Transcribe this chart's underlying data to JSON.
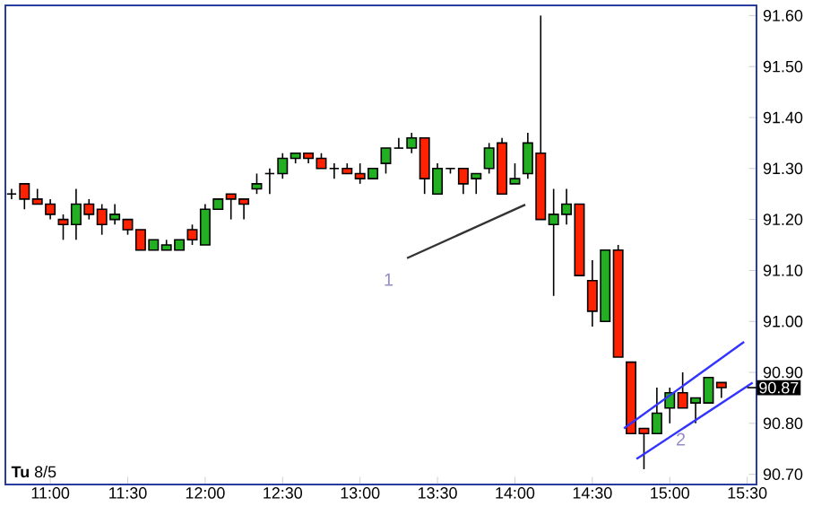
{
  "chart_data": {
    "type": "candlestick",
    "x": [
      10.75,
      10.8333,
      10.9167,
      11,
      11.0833,
      11.1667,
      11.25,
      11.3333,
      11.4167,
      11.5,
      11.5833,
      11.6667,
      11.75,
      11.8333,
      11.9167,
      12,
      12.0833,
      12.1667,
      12.25,
      12.3333,
      12.4167,
      12.5,
      12.5833,
      12.6667,
      12.75,
      12.8333,
      12.9167,
      13,
      13.0833,
      13.1667,
      13.25,
      13.3333,
      13.4167,
      13.5,
      13.5833,
      13.6667,
      13.75,
      13.8333,
      13.9167,
      14,
      14.0833,
      14.1667,
      14.25,
      14.3333,
      14.4167,
      14.5,
      14.5833,
      14.6667,
      14.75,
      14.8333,
      14.9167,
      15,
      15.0833,
      15.1667,
      15.25,
      15.3333
    ],
    "ohlc": [
      [
        91.25,
        91.26,
        91.24,
        91.25
      ],
      [
        91.27,
        91.27,
        91.22,
        91.24
      ],
      [
        91.24,
        91.26,
        91.23,
        91.23
      ],
      [
        91.23,
        91.24,
        91.2,
        91.21
      ],
      [
        91.2,
        91.21,
        91.16,
        91.19
      ],
      [
        91.19,
        91.26,
        91.16,
        91.23
      ],
      [
        91.23,
        91.24,
        91.2,
        91.21
      ],
      [
        91.22,
        91.23,
        91.17,
        91.19
      ],
      [
        91.2,
        91.23,
        91.19,
        91.21
      ],
      [
        91.2,
        91.2,
        91.17,
        91.18
      ],
      [
        91.18,
        91.18,
        91.14,
        91.14
      ],
      [
        91.14,
        91.16,
        91.14,
        91.16
      ],
      [
        91.14,
        91.16,
        91.14,
        91.15
      ],
      [
        91.14,
        91.16,
        91.14,
        91.16
      ],
      [
        91.18,
        91.19,
        91.15,
        91.16
      ],
      [
        91.15,
        91.23,
        91.15,
        91.22
      ],
      [
        91.22,
        91.24,
        91.22,
        91.24
      ],
      [
        91.25,
        91.25,
        91.2,
        91.24
      ],
      [
        91.24,
        91.24,
        91.2,
        91.23
      ],
      [
        91.26,
        91.29,
        91.25,
        91.27
      ],
      [
        91.29,
        91.3,
        91.25,
        91.29
      ],
      [
        91.29,
        91.33,
        91.28,
        91.32
      ],
      [
        91.32,
        91.33,
        91.31,
        91.33
      ],
      [
        91.33,
        91.33,
        91.31,
        91.32
      ],
      [
        91.32,
        91.33,
        91.3,
        91.3
      ],
      [
        91.3,
        91.31,
        91.28,
        91.3
      ],
      [
        91.3,
        91.31,
        91.29,
        91.29
      ],
      [
        91.29,
        91.31,
        91.27,
        91.28
      ],
      [
        91.28,
        91.3,
        91.28,
        91.3
      ],
      [
        91.31,
        91.34,
        91.29,
        91.34
      ],
      [
        91.34,
        91.36,
        91.34,
        91.34
      ],
      [
        91.34,
        91.37,
        91.33,
        91.36
      ],
      [
        91.36,
        91.36,
        91.25,
        91.28
      ],
      [
        91.25,
        91.31,
        91.25,
        91.3
      ],
      [
        91.3,
        91.3,
        91.29,
        91.3
      ],
      [
        91.3,
        91.3,
        91.25,
        91.27
      ],
      [
        91.28,
        91.29,
        91.25,
        91.29
      ],
      [
        91.3,
        91.35,
        91.29,
        91.34
      ],
      [
        91.35,
        91.36,
        91.25,
        91.25
      ],
      [
        91.27,
        91.31,
        91.27,
        91.28
      ],
      [
        91.29,
        91.37,
        91.28,
        91.35
      ],
      [
        91.33,
        91.6,
        91.2,
        91.2
      ],
      [
        91.19,
        91.26,
        91.05,
        91.21
      ],
      [
        91.21,
        91.26,
        91.19,
        91.23
      ],
      [
        91.23,
        91.23,
        91.09,
        91.09
      ],
      [
        91.08,
        91.12,
        90.99,
        91.02
      ],
      [
        91.0,
        91.14,
        91.0,
        91.14
      ],
      [
        91.14,
        91.15,
        90.93,
        90.93
      ],
      [
        90.92,
        90.92,
        90.78,
        90.78
      ],
      [
        90.79,
        90.79,
        90.71,
        90.78
      ],
      [
        90.78,
        90.87,
        90.78,
        90.82
      ],
      [
        90.83,
        90.87,
        90.8,
        90.86
      ],
      [
        90.86,
        90.9,
        90.83,
        90.83
      ],
      [
        90.84,
        90.85,
        90.8,
        90.85
      ],
      [
        90.84,
        90.89,
        90.84,
        90.89
      ],
      [
        90.88,
        90.88,
        90.85,
        90.87
      ]
    ],
    "colors": [
      "#000000",
      "#ff2200",
      "#ff2200",
      "#ff2200",
      "#ff2200",
      "#22b022",
      "#ff2200",
      "#ff2200",
      "#22b022",
      "#ff2200",
      "#ff2200",
      "#22b022",
      "#22b022",
      "#22b022",
      "#ff2200",
      "#22b022",
      "#22b022",
      "#ff2200",
      "#ff2200",
      "#22b022",
      "#000000",
      "#22b022",
      "#22b022",
      "#ff2200",
      "#ff2200",
      "#000000",
      "#ff2200",
      "#ff2200",
      "#22b022",
      "#22b022",
      "#000000",
      "#22b022",
      "#ff2200",
      "#22b022",
      "#000000",
      "#ff2200",
      "#22b022",
      "#22b022",
      "#ff2200",
      "#22b022",
      "#22b022",
      "#ff2200",
      "#22b022",
      "#22b022",
      "#ff2200",
      "#ff2200",
      "#22b022",
      "#ff2200",
      "#ff2200",
      "#ff2200",
      "#22b022",
      "#22b022",
      "#ff2200",
      "#22b022",
      "#22b022",
      "#ff2200"
    ],
    "series": [
      {
        "type": "line",
        "color": "#333333",
        "x": [
          13.303,
          14.067
        ],
        "values": [
          91.124,
          91.229
        ]
      },
      {
        "type": "line",
        "color": "#3333ff",
        "x": [
          14.704,
          15.48
        ],
        "values": [
          90.79,
          90.96
        ]
      },
      {
        "type": "line",
        "color": "#3333ff",
        "x": [
          14.785,
          15.535
        ],
        "values": [
          90.73,
          90.88
        ]
      }
    ],
    "xlim": [
      10.71,
      15.56
    ],
    "ylim": [
      90.68,
      91.62
    ],
    "xticks": [
      {
        "value": 11,
        "label": "11:00"
      },
      {
        "value": 11.5,
        "label": "11:30"
      },
      {
        "value": 12,
        "label": "12:00"
      },
      {
        "value": 12.5,
        "label": "12:30"
      },
      {
        "value": 13,
        "label": "13:00"
      },
      {
        "value": 13.5,
        "label": "13:30"
      },
      {
        "value": 14,
        "label": "14:00"
      },
      {
        "value": 14.5,
        "label": "14:30"
      },
      {
        "value": 15,
        "label": "15:00"
      },
      {
        "value": 15.5,
        "label": "15:30"
      }
    ],
    "yticks": [
      {
        "value": 90.7,
        "label": "90.70"
      },
      {
        "value": 90.8,
        "label": "90.80"
      },
      {
        "value": 90.9,
        "label": "90.90"
      },
      {
        "value": 91.0,
        "label": "91.00"
      },
      {
        "value": 91.1,
        "label": "91.10"
      },
      {
        "value": 91.2,
        "label": "91.20"
      },
      {
        "value": 91.3,
        "label": "91.30"
      },
      {
        "value": 91.4,
        "label": "91.40"
      },
      {
        "value": 91.5,
        "label": "91.50"
      },
      {
        "value": 91.6,
        "label": "91.60"
      }
    ],
    "annotations": [
      "**Tu** 8/5",
      {
        "text": "1",
        "x": 13.303,
        "y": 91.124
      },
      {
        "text": "2",
        "x": 15.19,
        "y": 90.811
      },
      {
        "text": "90.87",
        "x": 15.3333,
        "y": 90.87
      }
    ],
    "tick_labels": "xy"
  }
}
